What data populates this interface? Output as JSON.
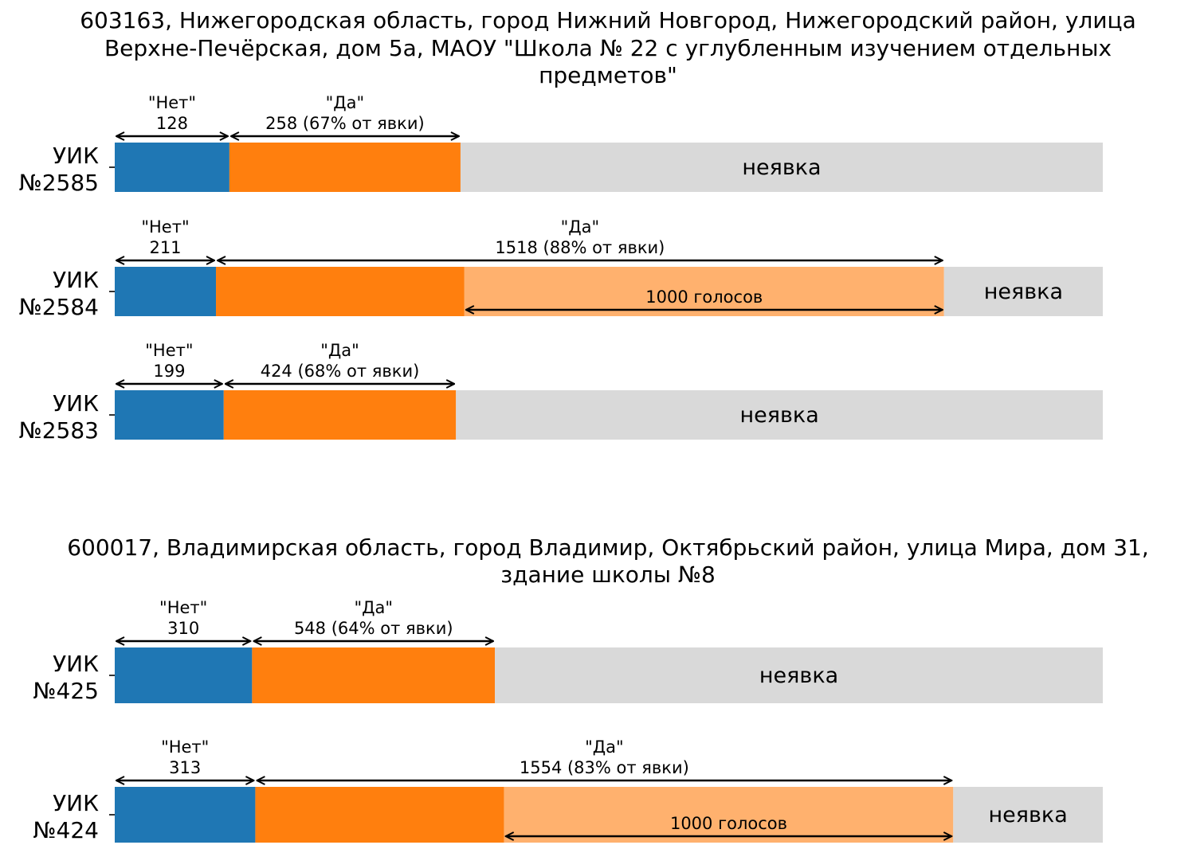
{
  "chart_data": [
    {
      "type": "bar",
      "orientation": "horizontal-stacked",
      "title": "603163, Нижегородская область, город Нижний Новгород, Нижегородский район, улица Верхне-Печёрская, дом 5а, МАОУ \"Школа № 22 с углубленным изучением отдельных предметов\"",
      "title_lines": [
        "603163, Нижегородская область, город Нижний Новгород, Нижегородский район, улица",
        "Верхне-Печёрская, дом 5а, МАОУ \"Школа № 22 с углубленным изучением отдельных",
        "предметов\""
      ],
      "colors": {
        "no": "#1f77b4",
        "yes": "#ff7f0e",
        "excess": "#ffb16e",
        "absent": "#d9d9d9"
      },
      "grid": false,
      "rows": [
        {
          "label_lines": [
            "УИК",
            "№2585"
          ],
          "no": 128,
          "yes": 258,
          "total": 1103,
          "excess": 0,
          "no_label": [
            "\"Нет\"",
            "128"
          ],
          "yes_label": [
            "\"Да\"",
            "258 (67% от явки)"
          ],
          "absent_label": "неявка",
          "excess_label": ""
        },
        {
          "label_lines": [
            "УИК",
            "№2584"
          ],
          "no": 211,
          "yes": 1518,
          "total": 2060,
          "excess": 1000,
          "no_label": [
            "\"Нет\"",
            "211"
          ],
          "yes_label": [
            "\"Да\"",
            "1518 (88% от явки)"
          ],
          "absent_label": "неявка",
          "excess_label": "1000 голосов"
        },
        {
          "label_lines": [
            "УИК",
            "№2583"
          ],
          "no": 199,
          "yes": 424,
          "total": 1804,
          "excess": 0,
          "no_label": [
            "\"Нет\"",
            "199"
          ],
          "yes_label": [
            "\"Да\"",
            "424 (68% от явки)"
          ],
          "absent_label": "неявка",
          "excess_label": ""
        }
      ]
    },
    {
      "type": "bar",
      "orientation": "horizontal-stacked",
      "title": "600017, Владимирская область, город Владимир, Октябрьский район, улица Мира, дом 31, здание школы №8",
      "title_lines": [
        "600017, Владимирская область, город Владимир, Октябрьский район, улица Мира, дом 31,",
        "здание школы №8"
      ],
      "colors": {
        "no": "#1f77b4",
        "yes": "#ff7f0e",
        "excess": "#ffb16e",
        "absent": "#d9d9d9"
      },
      "grid": false,
      "rows": [
        {
          "label_lines": [
            "УИК",
            "№425"
          ],
          "no": 310,
          "yes": 548,
          "total": 2230,
          "excess": 0,
          "no_label": [
            "\"Нет\"",
            "310"
          ],
          "yes_label": [
            "\"Да\"",
            "548 (64% от явки)"
          ],
          "absent_label": "неявка",
          "excess_label": ""
        },
        {
          "label_lines": [
            "УИК",
            "№424"
          ],
          "no": 313,
          "yes": 1554,
          "total": 2200,
          "excess": 1000,
          "no_label": [
            "\"Нет\"",
            "313"
          ],
          "yes_label": [
            "\"Да\"",
            "1554 (83% от явки)"
          ],
          "absent_label": "неявка",
          "excess_label": "1000 голосов"
        }
      ]
    }
  ]
}
